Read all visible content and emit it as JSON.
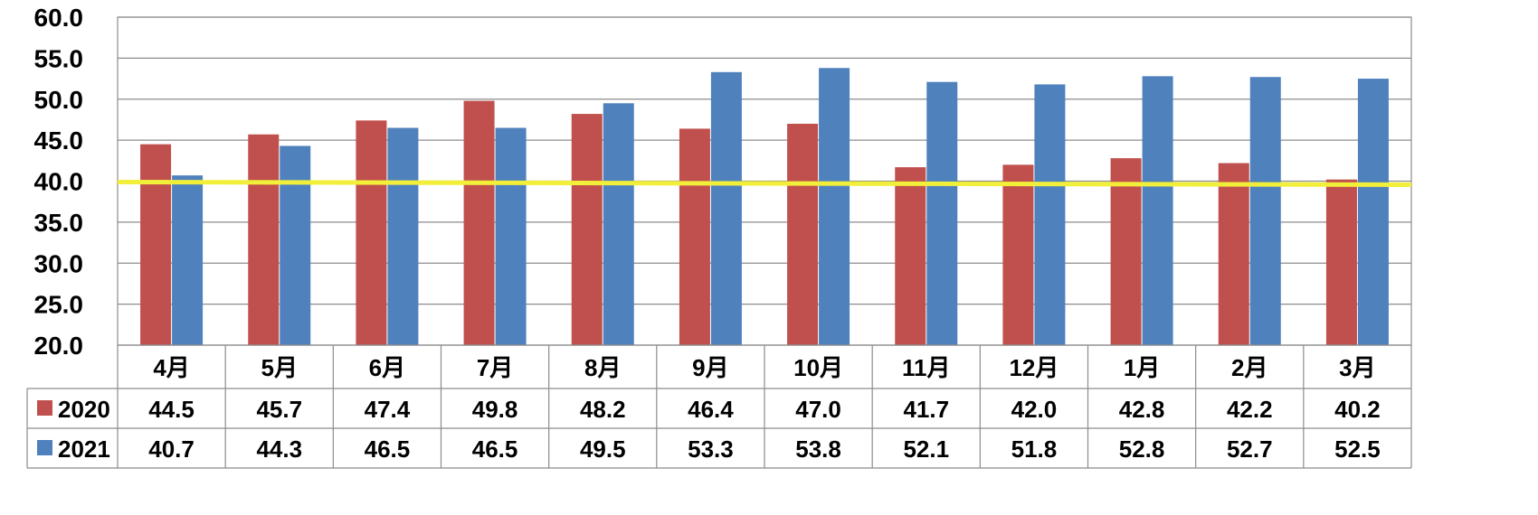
{
  "chart_data": {
    "type": "bar",
    "categories": [
      "4月",
      "5月",
      "6月",
      "7月",
      "8月",
      "9月",
      "10月",
      "11月",
      "12月",
      "1月",
      "2月",
      "3月"
    ],
    "series": [
      {
        "name": "2020",
        "color": "#c0504d",
        "values": [
          44.5,
          45.7,
          47.4,
          49.8,
          48.2,
          46.4,
          47.0,
          41.7,
          42.0,
          42.8,
          42.2,
          40.2
        ]
      },
      {
        "name": "2021",
        "color": "#4f81bd",
        "values": [
          40.7,
          44.3,
          46.5,
          46.5,
          49.5,
          53.3,
          53.8,
          52.1,
          51.8,
          52.8,
          52.7,
          52.5
        ]
      }
    ],
    "ylim": [
      20,
      60
    ],
    "yticks": [
      "20.0",
      "25.0",
      "30.0",
      "35.0",
      "40.0",
      "45.0",
      "50.0",
      "55.0",
      "60.0"
    ],
    "reference_line": {
      "value": 40,
      "color": "#f2ef3a"
    },
    "grid": true,
    "data_table": true,
    "title": "",
    "xlabel": "",
    "ylabel": ""
  }
}
